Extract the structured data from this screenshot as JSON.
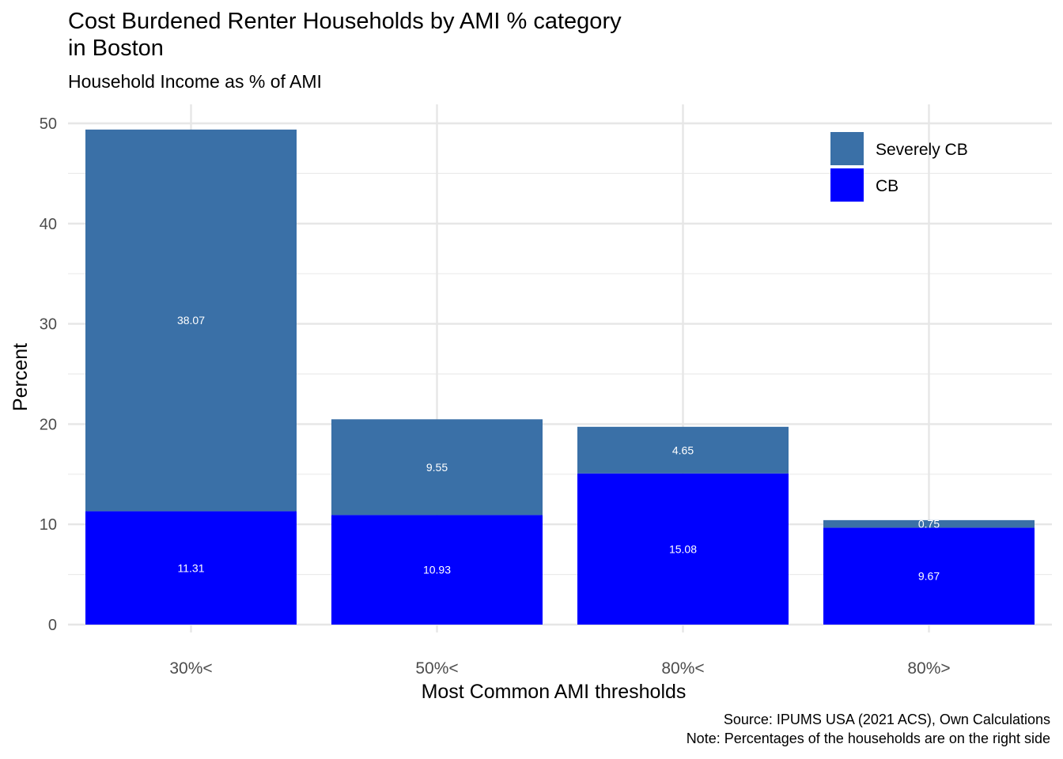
{
  "chart_data": {
    "type": "bar",
    "stacked": true,
    "title_lines": [
      "Cost Burdened Renter Households by AMI % category",
      "in Boston"
    ],
    "subtitle": "Household Income as % of AMI",
    "xlabel": "Most Common AMI thresholds",
    "ylabel": "Percent",
    "categories": [
      "30%<",
      "50%<",
      "80%<",
      "80%>"
    ],
    "series": [
      {
        "name": "CB",
        "color": "#0000ff",
        "values": [
          11.31,
          10.93,
          15.08,
          9.67
        ]
      },
      {
        "name": "Severely CB",
        "color": "#3a70a7",
        "values": [
          38.07,
          9.55,
          4.65,
          0.75
        ]
      }
    ],
    "legend_order": [
      "Severely CB",
      "CB"
    ],
    "legend_position": "top-right",
    "ylim": [
      0,
      52
    ],
    "yticks": [
      0,
      10,
      20,
      30,
      40,
      50
    ],
    "grid": true,
    "caption_lines": [
      "Source: IPUMS USA (2021 ACS), Own Calculations",
      "Note: Percentages of the households are on the right side"
    ]
  }
}
